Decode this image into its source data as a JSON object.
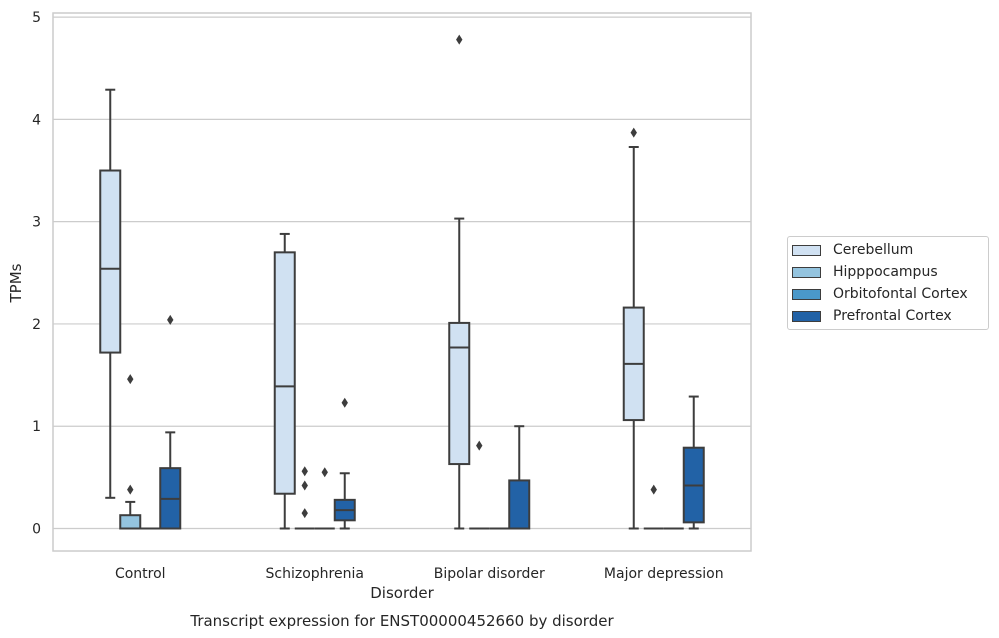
{
  "chart_data": {
    "type": "box",
    "caption": "Transcript expression for ENST00000452660 by disorder",
    "xlabel": "Disorder",
    "ylabel": "TPMs",
    "ylim": [
      -0.22,
      5.04
    ],
    "yticks": [
      "0",
      "1",
      "2",
      "3",
      "4",
      "5"
    ],
    "categories": [
      "Control",
      "Schizophrenia",
      "Bipolar disorder",
      "Major depression"
    ],
    "grid": "horizontal",
    "legend_position": "right",
    "series": [
      {
        "name": "Cerebellum",
        "color": "#d0e1f2",
        "boxes": [
          {
            "whisker_low": 0.3,
            "q1": 1.72,
            "median": 2.54,
            "q3": 3.5,
            "whisker_high": 4.29,
            "outliers": []
          },
          {
            "whisker_low": 0.0,
            "q1": 0.34,
            "median": 1.39,
            "q3": 2.7,
            "whisker_high": 2.88,
            "outliers": []
          },
          {
            "whisker_low": 0.0,
            "q1": 0.63,
            "median": 1.77,
            "q3": 2.01,
            "whisker_high": 3.03,
            "outliers": [
              4.78
            ]
          },
          {
            "whisker_low": 0.0,
            "q1": 1.06,
            "median": 1.61,
            "q3": 2.16,
            "whisker_high": 3.73,
            "outliers": [
              3.87
            ]
          }
        ]
      },
      {
        "name": "Hipppocampus",
        "color": "#94c4df",
        "boxes": [
          {
            "whisker_low": 0.0,
            "q1": 0.0,
            "median": 0.0,
            "q3": 0.13,
            "whisker_high": 0.26,
            "outliers": [
              0.38,
              1.46
            ]
          },
          {
            "whisker_low": 0.0,
            "q1": 0.0,
            "median": 0.0,
            "q3": 0.0,
            "whisker_high": 0.0,
            "outliers": [
              0.15,
              0.42,
              0.56
            ]
          },
          {
            "whisker_low": 0.0,
            "q1": 0.0,
            "median": 0.0,
            "q3": 0.0,
            "whisker_high": 0.0,
            "outliers": [
              0.81
            ]
          },
          {
            "whisker_low": 0.0,
            "q1": 0.0,
            "median": 0.0,
            "q3": 0.0,
            "whisker_high": 0.0,
            "outliers": [
              0.38
            ]
          }
        ]
      },
      {
        "name": "Orbitofontal Cortex",
        "color": "#4a98c9",
        "boxes": [
          {
            "whisker_low": 0.0,
            "q1": 0.0,
            "median": 0.0,
            "q3": 0.0,
            "whisker_high": 0.0,
            "outliers": []
          },
          {
            "whisker_low": 0.0,
            "q1": 0.0,
            "median": 0.0,
            "q3": 0.0,
            "whisker_high": 0.0,
            "outliers": [
              0.55
            ]
          },
          {
            "whisker_low": 0.0,
            "q1": 0.0,
            "median": 0.0,
            "q3": 0.0,
            "whisker_high": 0.0,
            "outliers": []
          },
          {
            "whisker_low": 0.0,
            "q1": 0.0,
            "median": 0.0,
            "q3": 0.0,
            "whisker_high": 0.0,
            "outliers": []
          }
        ]
      },
      {
        "name": "Prefrontal Cortex",
        "color": "#2262a6",
        "boxes": [
          {
            "whisker_low": 0.0,
            "q1": 0.0,
            "median": 0.29,
            "q3": 0.59,
            "whisker_high": 0.94,
            "outliers": [
              2.04
            ]
          },
          {
            "whisker_low": 0.0,
            "q1": 0.08,
            "median": 0.18,
            "q3": 0.28,
            "whisker_high": 0.54,
            "outliers": [
              1.23
            ]
          },
          {
            "whisker_low": 0.0,
            "q1": 0.0,
            "median": 0.0,
            "q3": 0.47,
            "whisker_high": 1.0,
            "outliers": []
          },
          {
            "whisker_low": 0.0,
            "q1": 0.06,
            "median": 0.42,
            "q3": 0.79,
            "whisker_high": 1.29,
            "outliers": []
          }
        ]
      }
    ]
  }
}
